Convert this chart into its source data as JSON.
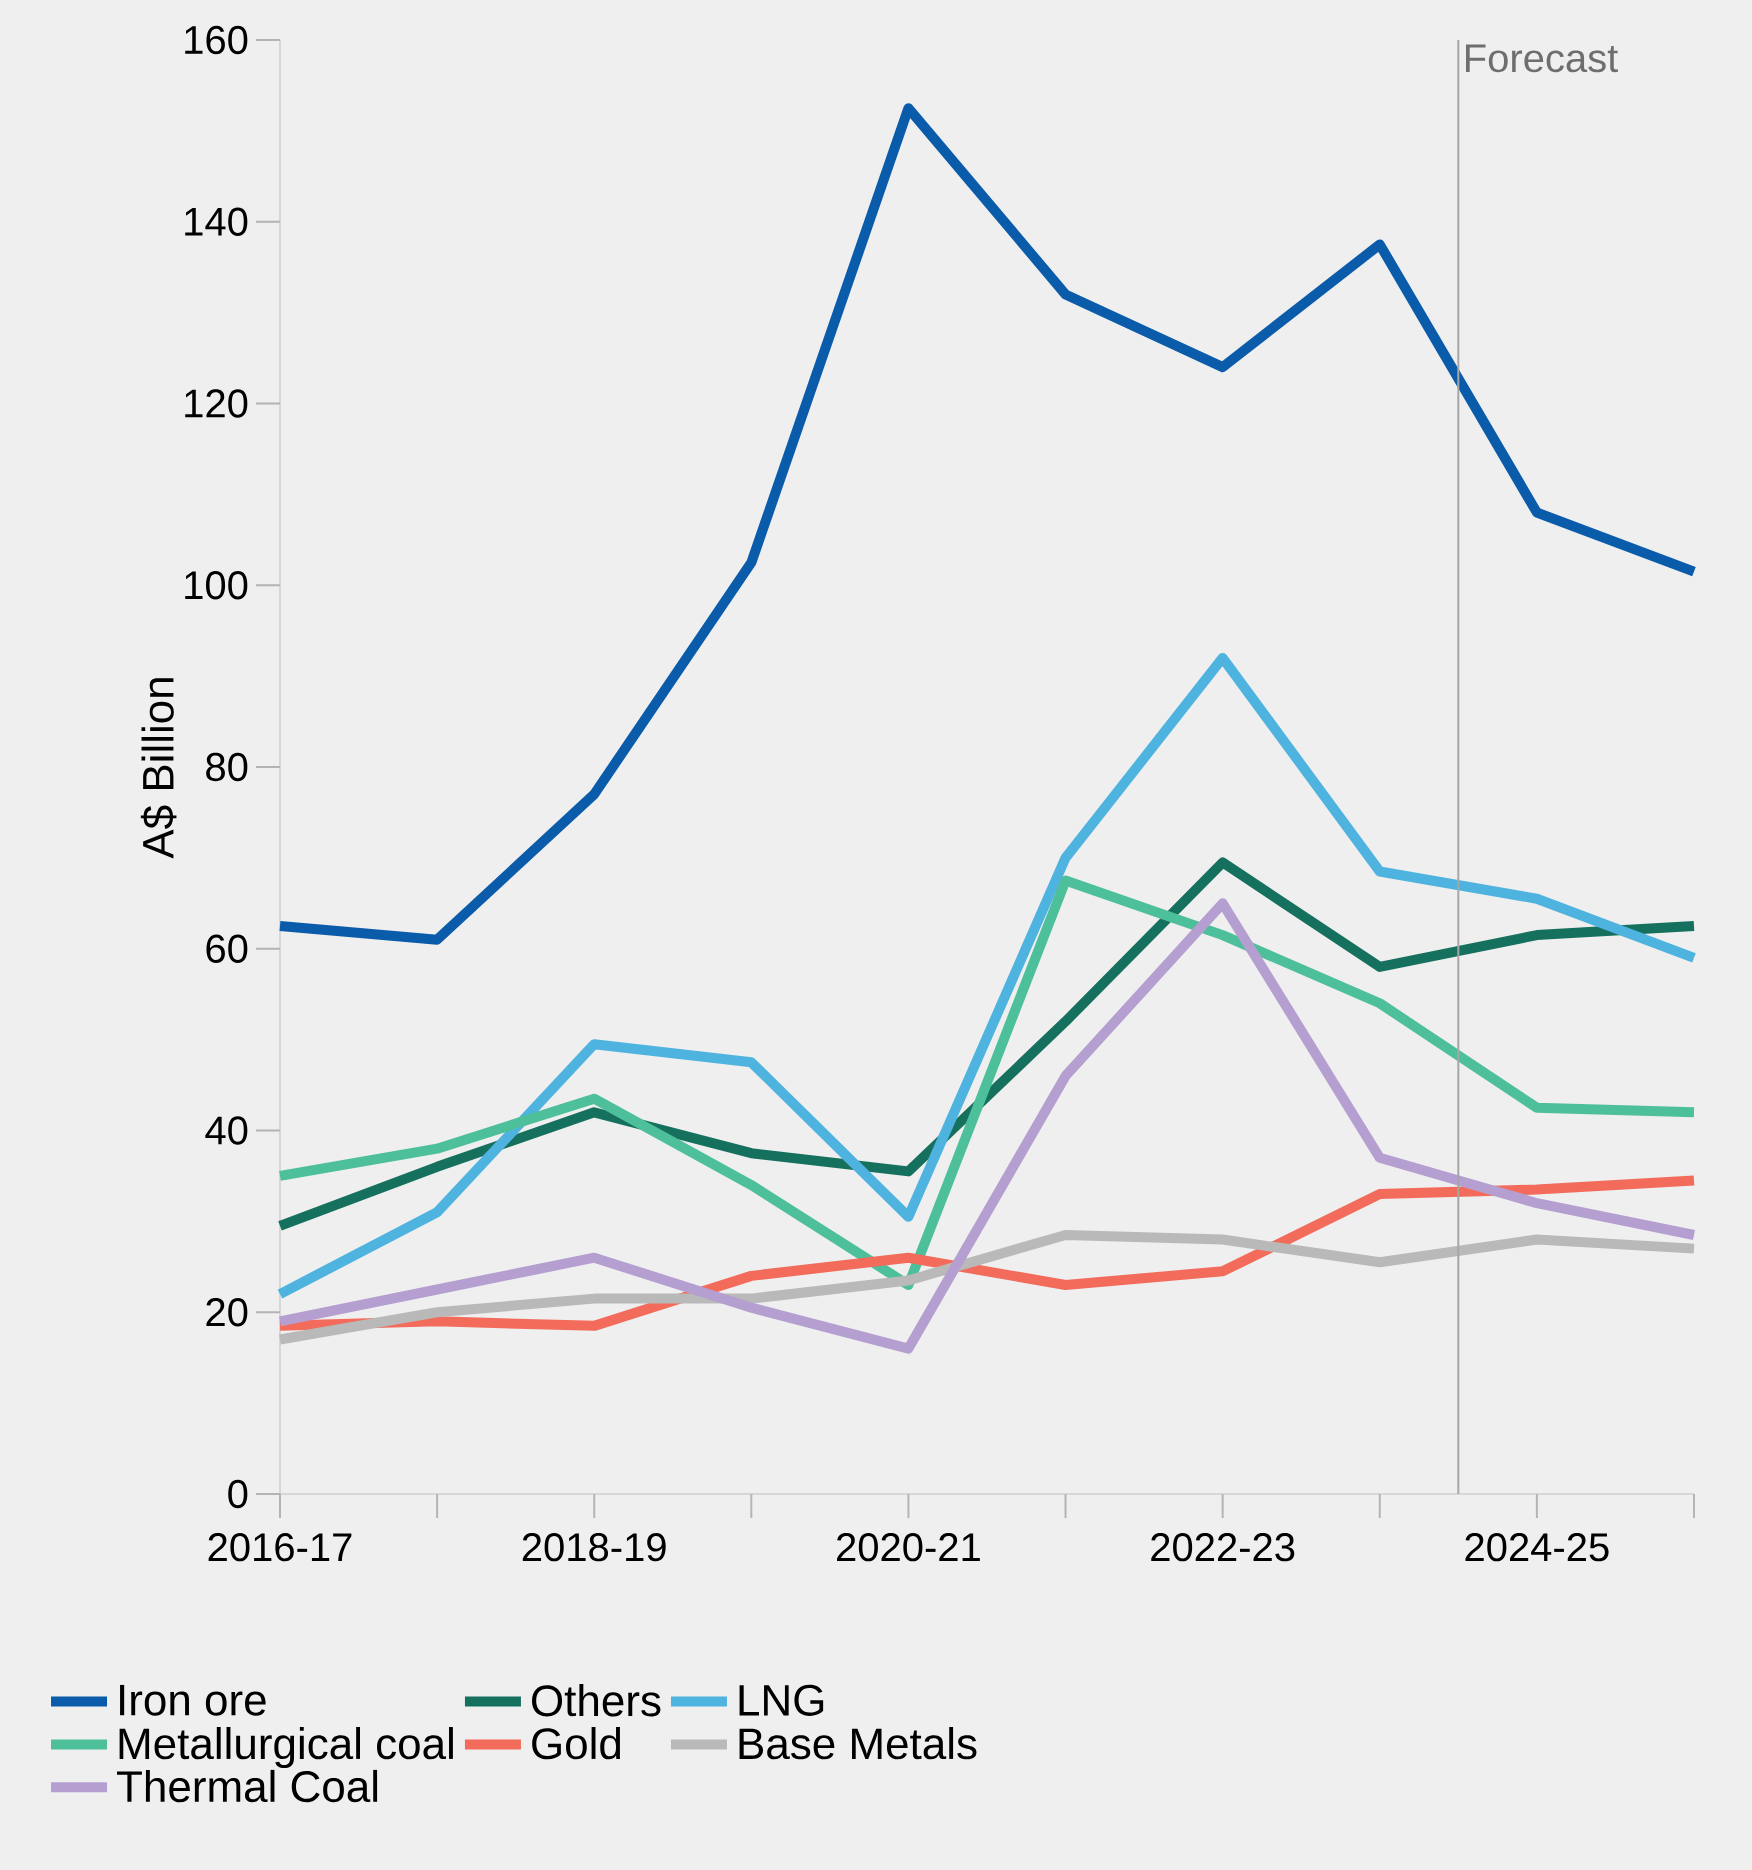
{
  "chart_data": {
    "type": "line",
    "ylabel": "A$ Billion",
    "categories": [
      "2016-17",
      null,
      "2018-19",
      null,
      "2020-21",
      null,
      "2022-23",
      null,
      "2024-25",
      null
    ],
    "ylim": [
      0,
      160
    ],
    "yticks": [
      0,
      20,
      40,
      60,
      80,
      100,
      120,
      140,
      160
    ],
    "legend": "bottom",
    "grid": false,
    "marker": "none",
    "line_style": "solid",
    "annotations": [
      "Forecast"
    ],
    "series": [
      {
        "name": "Iron ore",
        "color": "#0a5cab",
        "values": [
          62.5,
          61,
          77,
          102.5,
          152.5,
          132,
          124,
          137.5,
          108,
          101.5
        ]
      },
      {
        "name": "Others",
        "color": "#16705e",
        "values": [
          29.5,
          36,
          42,
          37.5,
          35.5,
          52,
          69.5,
          58,
          61.5,
          62.5
        ]
      },
      {
        "name": "LNG",
        "color": "#4fb3e0",
        "values": [
          22,
          31,
          49.5,
          47.5,
          30.5,
          70,
          92,
          68.5,
          65.5,
          59
        ]
      },
      {
        "name": "Metallurgical coal",
        "color": "#4dbf9a",
        "values": [
          35,
          38,
          43.5,
          34,
          23,
          67.5,
          61.5,
          54,
          42.5,
          42
        ]
      },
      {
        "name": "Gold",
        "color": "#f26b5b",
        "values": [
          18.5,
          19,
          18.5,
          24,
          26,
          23,
          24.5,
          33,
          33.5,
          34.5
        ]
      },
      {
        "name": "Base Metals",
        "color": "#b8b9b8",
        "values": [
          17,
          20,
          21.5,
          21.5,
          23.5,
          28.5,
          28,
          25.5,
          28,
          27
        ]
      },
      {
        "name": "Thermal Coal",
        "color": "#b49fd0",
        "values": [
          19,
          22.5,
          26,
          20.5,
          16,
          46,
          65,
          37,
          32,
          28.5
        ]
      }
    ]
  }
}
